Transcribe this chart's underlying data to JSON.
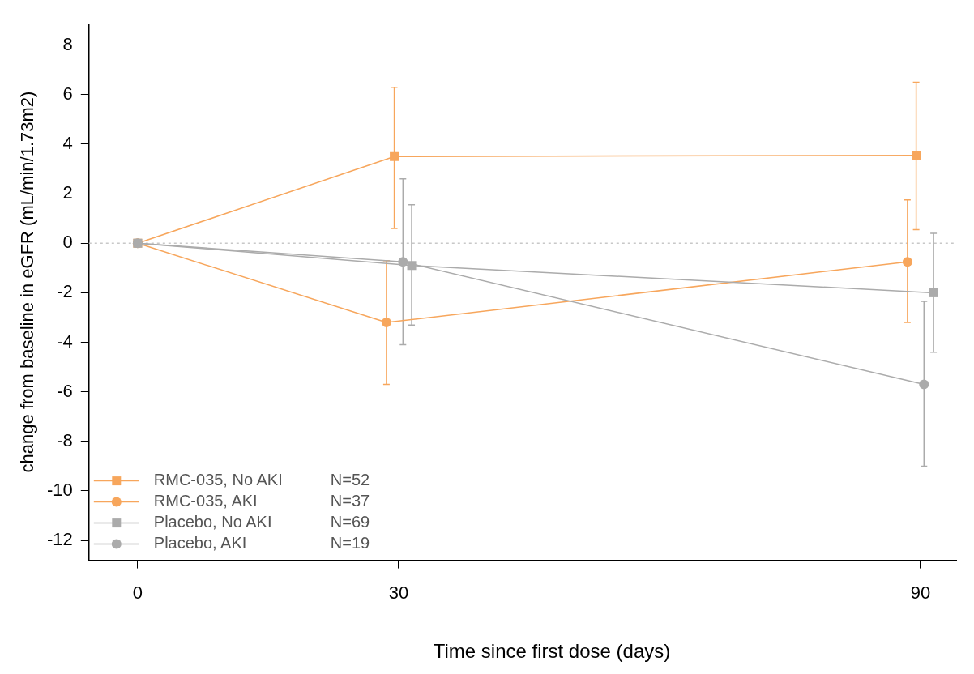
{
  "chart_data": {
    "type": "line",
    "xlabel": "Time since first dose (days)",
    "ylabel": "change from baseline in eGFR (mL/min/1.73m2)",
    "xlim": [
      -5.6,
      94.1
    ],
    "xticks": [
      0,
      30,
      90
    ],
    "ylim": [
      -12.8,
      8.8
    ],
    "yticks": [
      8,
      6,
      4,
      2,
      0,
      -2,
      -4,
      -6,
      -8,
      -10,
      -12
    ],
    "grid": false,
    "legend": "bottom left",
    "ref_lines": [
      {
        "axis": "y",
        "value": 0,
        "color": "#c8c8c8",
        "line_style": "dotted"
      }
    ],
    "series": [
      {
        "name": "RMC-035, No AKI",
        "color": "#f7a65c",
        "marker": "square",
        "x": [
          0,
          29.5,
          89.5
        ],
        "values": [
          0,
          3.5,
          3.55
        ],
        "errors": [
          null,
          [
            0.6,
            6.3
          ],
          [
            0.55,
            6.5
          ]
        ]
      },
      {
        "name": "RMC-035, AKI",
        "color": "#f7a65c",
        "marker": "circle",
        "x": [
          0,
          28.6,
          88.5
        ],
        "values": [
          0,
          -3.2,
          -0.75
        ],
        "errors": [
          null,
          [
            -5.7,
            -0.7
          ],
          [
            -3.2,
            1.75
          ]
        ]
      },
      {
        "name": "Placebo, No AKI",
        "color": "#ababab",
        "marker": "square",
        "x": [
          0,
          31.5,
          91.5
        ],
        "values": [
          0,
          -0.9,
          -2.0
        ],
        "errors": [
          null,
          [
            -3.3,
            1.55
          ],
          [
            -4.4,
            0.4
          ]
        ]
      },
      {
        "name": "Placebo, AKI",
        "color": "#ababab",
        "marker": "circle",
        "x": [
          0,
          30.5,
          90.4
        ],
        "values": [
          0,
          -0.75,
          -5.7
        ],
        "errors": [
          null,
          [
            -4.1,
            2.6
          ],
          [
            -9.0,
            -2.35
          ]
        ]
      }
    ],
    "annotations": [
      "N=52",
      "N=37",
      "N=69",
      "N=19"
    ]
  }
}
